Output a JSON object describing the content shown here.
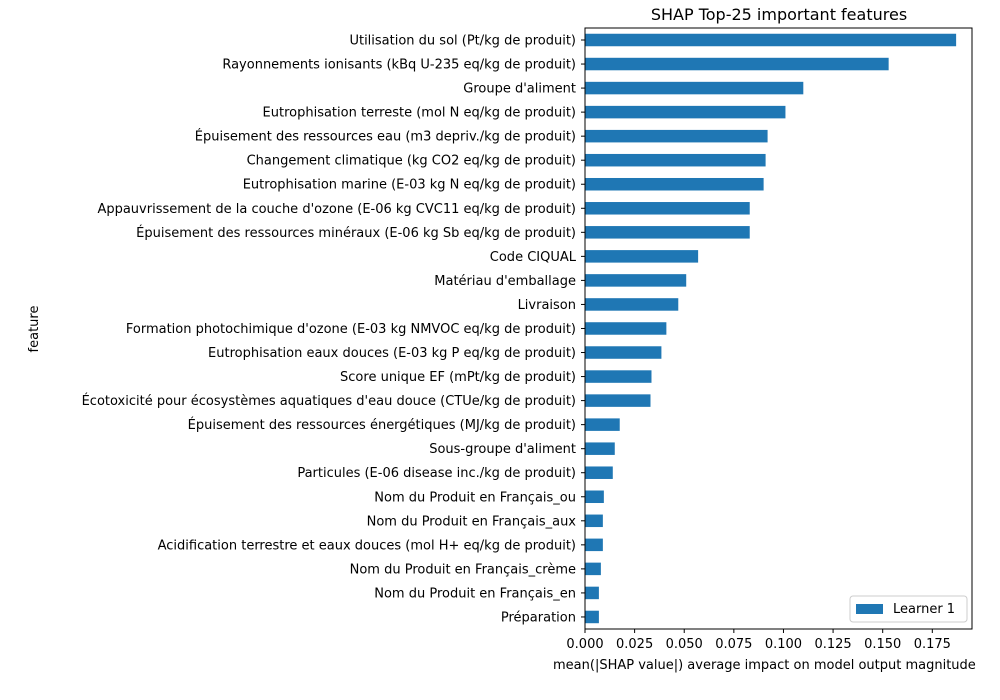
{
  "chart_data": {
    "type": "bar",
    "orientation": "horizontal",
    "title": "SHAP Top-25 important features",
    "xlabel": "mean(|SHAP value|) average impact on model output magnitude",
    "ylabel": "feature",
    "xlim": [
      0,
      0.195
    ],
    "xticks": [
      0.0,
      0.025,
      0.05,
      0.075,
      0.1,
      0.125,
      0.15,
      0.175
    ],
    "xtick_labels": [
      "0.000",
      "0.025",
      "0.050",
      "0.075",
      "0.100",
      "0.125",
      "0.150",
      "0.175"
    ],
    "grid": false,
    "legend_position": "bottom-right",
    "series": [
      {
        "name": "Learner 1",
        "color": "#1f77b4"
      }
    ],
    "categories": [
      "Utilisation du sol (Pt/kg de produit)",
      "Rayonnements ionisants (kBq U-235 eq/kg de produit)",
      "Groupe d'aliment",
      "Eutrophisation terreste (mol N eq/kg de produit)",
      "Épuisement des ressources eau (m3 depriv./kg de produit)",
      "Changement climatique (kg CO2 eq/kg de produit)",
      "Eutrophisation marine (E-03 kg N eq/kg de produit)",
      "Appauvrissement de la couche d'ozone (E-06 kg CVC11 eq/kg de produit)",
      "Épuisement des ressources minéraux (E-06 kg Sb eq/kg de produit)",
      "Code CIQUAL",
      "Matériau d'emballage",
      "Livraison",
      "Formation photochimique d'ozone (E-03 kg NMVOC eq/kg de produit)",
      "Eutrophisation eaux douces (E-03 kg P eq/kg de produit)",
      "Score unique EF (mPt/kg de produit)",
      "Écotoxicité pour écosystèmes aquatiques d'eau douce (CTUe/kg de produit)",
      "Épuisement des ressources énergétiques (MJ/kg de produit)",
      "Sous-groupe d'aliment",
      "Particules (E-06 disease inc./kg de produit)",
      "Nom du Produit en Français_ou",
      "Nom du Produit en Français_aux",
      "Acidification terrestre et eaux douces (mol H+ eq/kg de produit)",
      "Nom du Produit en Français_crème",
      "Nom du Produit en Français_en",
      "Préparation"
    ],
    "values": [
      0.187,
      0.153,
      0.11,
      0.101,
      0.092,
      0.091,
      0.09,
      0.083,
      0.083,
      0.057,
      0.051,
      0.047,
      0.041,
      0.0385,
      0.0335,
      0.033,
      0.0175,
      0.015,
      0.014,
      0.0095,
      0.009,
      0.009,
      0.008,
      0.007,
      0.007
    ]
  }
}
